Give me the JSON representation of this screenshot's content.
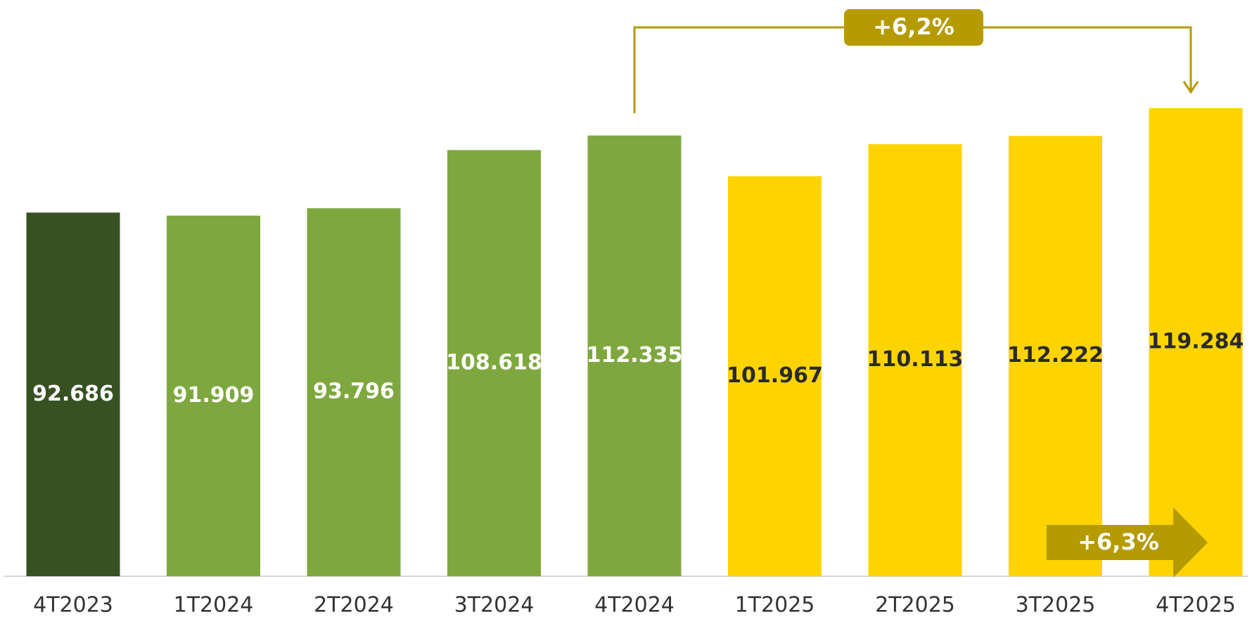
{
  "chart_data": {
    "type": "bar",
    "categories": [
      "4T2023",
      "1T2024",
      "2T2024",
      "3T2024",
      "4T2024",
      "1T2025",
      "2T2025",
      "3T2025",
      "4T2025"
    ],
    "values": [
      92686,
      91909,
      93796,
      108618,
      112335,
      101967,
      110113,
      112222,
      119284
    ],
    "value_labels": [
      "92.686",
      "91.909",
      "93.796",
      "108.618",
      "112.335",
      "101.967",
      "110.113",
      "112.222",
      "119.284"
    ],
    "colors": [
      "#375123",
      "#7ea83f",
      "#7ea83f",
      "#7ea83f",
      "#7ea83f",
      "#fdd400",
      "#fdd400",
      "#fdd400",
      "#fdd400"
    ],
    "label_colors": [
      "#ffffff",
      "#ffffff",
      "#ffffff",
      "#ffffff",
      "#ffffff",
      "#2a2a2a",
      "#2a2a2a",
      "#2a2a2a",
      "#2a2a2a"
    ],
    "annotations": [
      "+6,2%",
      "+6,3%"
    ],
    "annotation_color": "#b59a00"
  }
}
